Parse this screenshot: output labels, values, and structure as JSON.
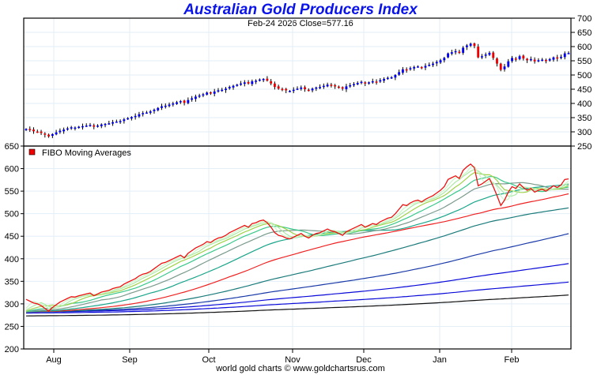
{
  "title": "Australian Gold Producers Index",
  "subtitle": "Feb-24  2026   Close=577.16",
  "footer": "world gold charts © www.goldchartsrus.com",
  "colors": {
    "title": "#0a14e8",
    "up": "#0000ee",
    "down": "#ee0000",
    "grid": "#e3eef7"
  },
  "chart_data": [
    {
      "type": "candlestick",
      "name": "price-panel",
      "ylim": [
        250,
        700
      ],
      "yticks": [
        700,
        650,
        600,
        550,
        500,
        450,
        400,
        350,
        300,
        250
      ],
      "y_axis_side": "right",
      "grid": true
    },
    {
      "type": "line",
      "name": "moving-averages-panel",
      "legend": "FIBO  Moving  Averages",
      "legend_position": "top-left",
      "ylim": [
        200,
        650
      ],
      "yticks": [
        650,
        600,
        550,
        500,
        450,
        400,
        350,
        300,
        250,
        200
      ],
      "y_axis_side": "left",
      "grid": true,
      "xticks": [
        "Aug",
        "Sep",
        "Oct",
        "Nov",
        "Dec",
        "Jan",
        "Feb"
      ],
      "close": [
        310,
        306,
        302,
        300,
        296,
        290,
        284,
        292,
        298,
        304,
        308,
        312,
        316,
        315,
        318,
        320,
        322,
        324,
        318,
        322,
        326,
        328,
        330,
        334,
        336,
        338,
        344,
        348,
        352,
        356,
        362,
        366,
        368,
        372,
        378,
        384,
        390,
        392,
        396,
        400,
        404,
        408,
        402,
        412,
        418,
        424,
        428,
        432,
        438,
        436,
        442,
        446,
        448,
        452,
        458,
        462,
        466,
        470,
        474,
        470,
        478,
        480,
        484,
        486,
        480,
        470,
        458,
        452,
        450,
        446,
        444,
        448,
        452,
        456,
        450,
        446,
        452,
        456,
        458,
        462,
        466,
        462,
        460,
        456,
        452,
        460,
        464,
        468,
        472,
        476,
        470,
        474,
        478,
        476,
        482,
        486,
        490,
        492,
        500,
        510,
        520,
        518,
        524,
        528,
        530,
        526,
        532,
        536,
        540,
        546,
        552,
        560,
        576,
        580,
        584,
        578,
        596,
        604,
        610,
        602,
        562,
        566,
        572,
        578,
        560,
        540,
        518,
        530,
        548,
        560,
        556,
        566,
        558,
        552,
        556,
        548,
        552,
        554,
        550,
        556,
        562,
        558,
        564,
        576,
        577.16
      ],
      "ma_periods": [
        3,
        5,
        8,
        13,
        21,
        34,
        55,
        89,
        144,
        233
      ]
    }
  ]
}
